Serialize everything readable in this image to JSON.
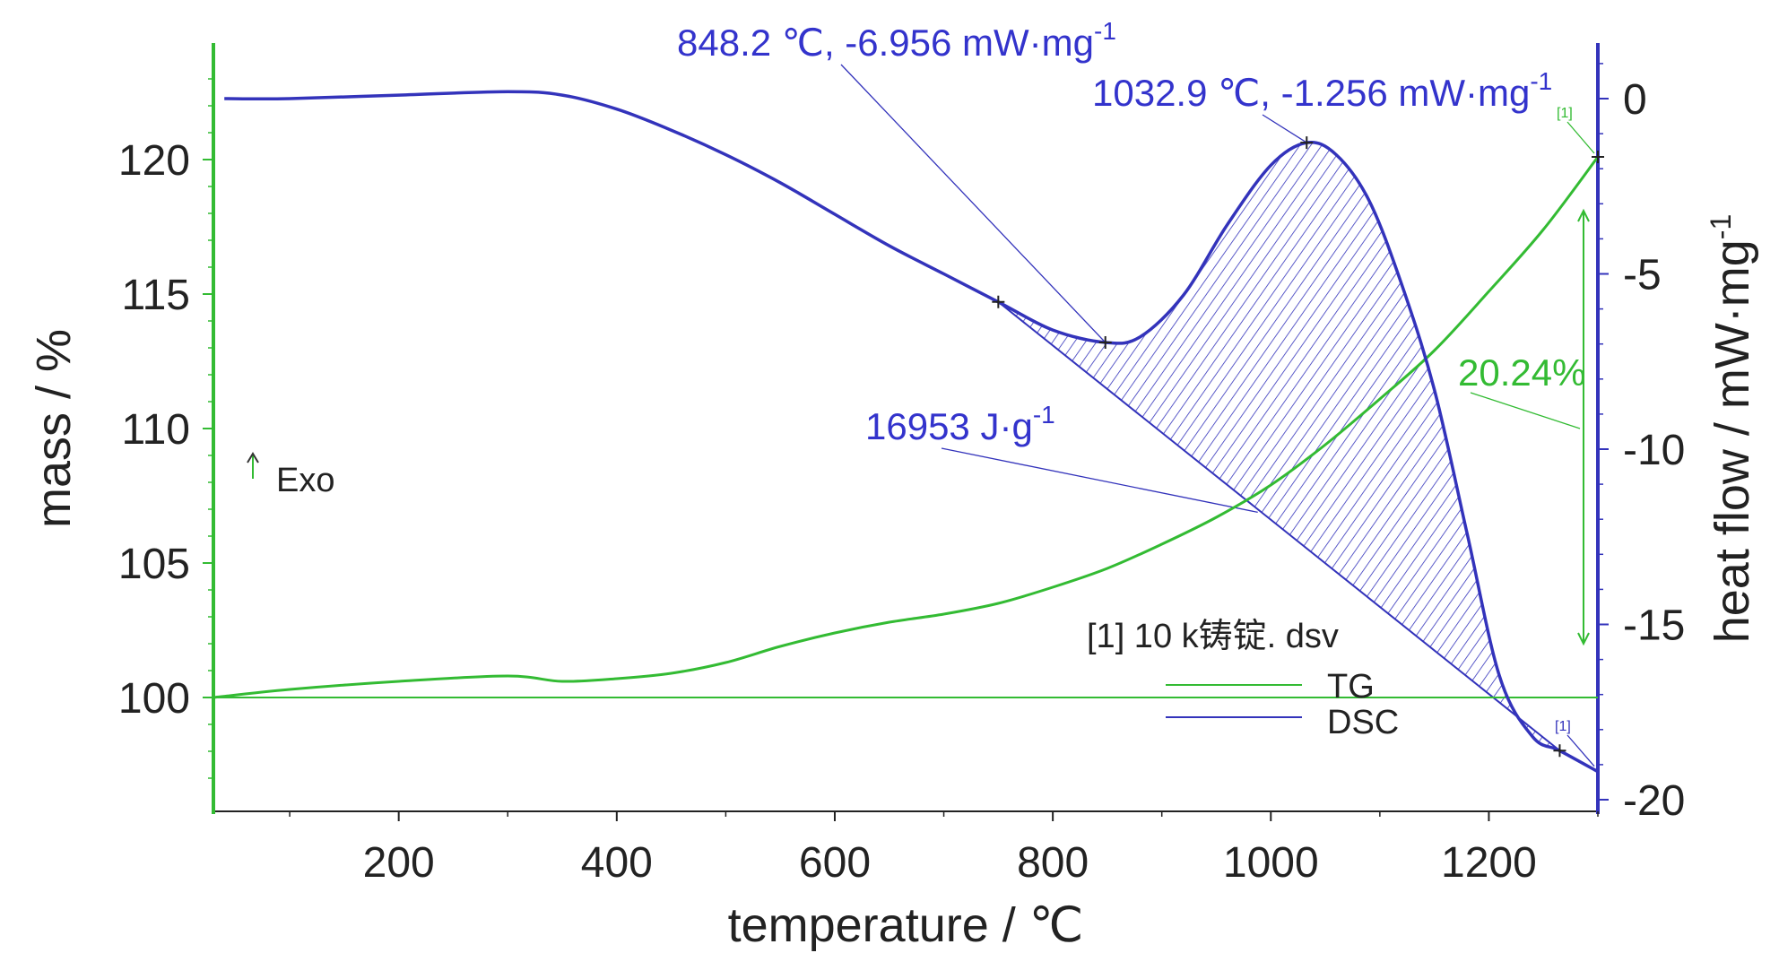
{
  "chart_data": {
    "type": "line",
    "xlabel": "temperature / ℃",
    "ylabel_left": "mass / %",
    "ylabel_right": "heat flow / mW·mg",
    "ylabel_right_sup": "-1",
    "xlim": [
      30,
      1300
    ],
    "ylim_left": [
      96,
      124
    ],
    "ylim_right": [
      -20.5,
      1.5
    ],
    "x_ticks": [
      200,
      400,
      600,
      800,
      1000,
      1200
    ],
    "x_tick_labels": [
      "200",
      "400",
      "600",
      "800",
      "1000",
      "1200"
    ],
    "y_left_ticks": [
      100,
      105,
      110,
      115,
      120
    ],
    "y_left_tick_labels": [
      "100",
      "105",
      "110",
      "115",
      "120"
    ],
    "y_right_ticks": [
      0,
      -5,
      -10,
      -15,
      -20
    ],
    "y_right_tick_labels": [
      "0",
      "-5",
      "-10",
      "-15",
      "-20"
    ],
    "series": [
      {
        "name": "TG",
        "axis": "left",
        "color": "#33bb33",
        "x": [
          30,
          100,
          200,
          300,
          350,
          400,
          450,
          500,
          550,
          600,
          650,
          700,
          750,
          800,
          850,
          900,
          950,
          1000,
          1050,
          1100,
          1150,
          1200,
          1250,
          1300
        ],
        "y": [
          100.0,
          100.3,
          100.6,
          100.8,
          100.6,
          100.7,
          100.9,
          101.3,
          101.9,
          102.4,
          102.8,
          103.1,
          103.5,
          104.1,
          104.8,
          105.7,
          106.7,
          107.9,
          109.4,
          111.1,
          112.9,
          115.1,
          117.4,
          120.1
        ]
      },
      {
        "name": "DSC",
        "axis": "right",
        "color": "#3333bb",
        "x": [
          40,
          100,
          200,
          300,
          350,
          400,
          450,
          500,
          550,
          600,
          650,
          700,
          750,
          800,
          848.2,
          880,
          920,
          960,
          1000,
          1032.9,
          1060,
          1090,
          1120,
          1150,
          1180,
          1210,
          1240,
          1265,
          1300
        ],
        "y": [
          0.0,
          0.0,
          0.1,
          0.2,
          0.1,
          -0.3,
          -0.9,
          -1.6,
          -2.4,
          -3.3,
          -4.2,
          -5.0,
          -5.8,
          -6.6,
          -6.956,
          -6.8,
          -5.6,
          -3.6,
          -1.9,
          -1.256,
          -1.6,
          -2.9,
          -5.3,
          -8.3,
          -12.4,
          -16.5,
          -18.2,
          -18.6,
          -19.2
        ]
      }
    ],
    "peak_integration": {
      "baseline_start_x": 750,
      "baseline_start_y": -5.8,
      "baseline_end_x": 1265,
      "baseline_end_y": -18.6,
      "area_label": "16953 J·g",
      "area_label_sup": "-1"
    },
    "annotations": {
      "peak1": "848.2 ℃, -6.956 mW·mg",
      "peak1_sup": "-1",
      "peak1_x": 848.2,
      "peak1_y": -6.956,
      "peak2": "1032.9 ℃, -1.256 mW·mg",
      "peak2_sup": "-1",
      "peak2_x": 1032.9,
      "peak2_y": -1.256,
      "mass_change": "20.24%",
      "exo": "Exo",
      "marker_tg": "[1]",
      "marker_dsc": "[1]"
    },
    "legend": {
      "title": "[1] 10 k铸锭. dsv",
      "items": [
        {
          "label": "TG",
          "color": "#33bb33"
        },
        {
          "label": "DSC",
          "color": "#3333bb"
        }
      ]
    }
  }
}
